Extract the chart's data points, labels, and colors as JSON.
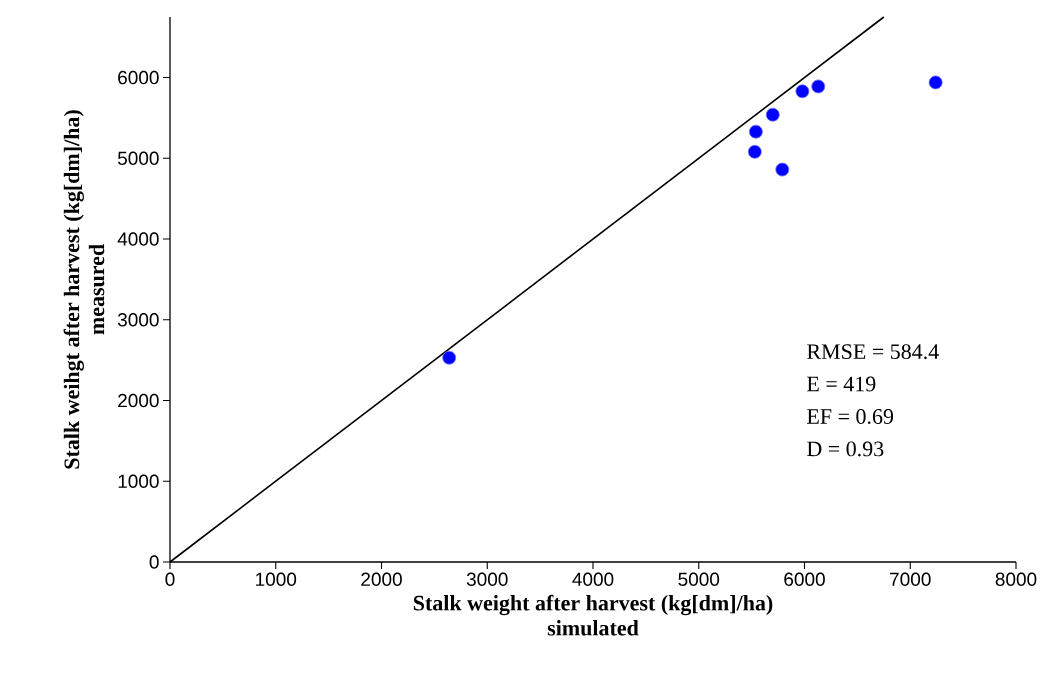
{
  "chart_data": {
    "type": "scatter",
    "xlabel": "Stalk weight after harvest (kg[dm]/ha)\nsimulated",
    "ylabel": "Stalk weihgt after harvest (kg[dm]/ha)\nmeasured",
    "xlim": [
      0,
      8000
    ],
    "ylim": [
      0,
      6750
    ],
    "xticks": [
      0,
      1000,
      2000,
      3000,
      4000,
      5000,
      6000,
      7000,
      8000
    ],
    "yticks": [
      0,
      1000,
      2000,
      3000,
      4000,
      5000,
      6000
    ],
    "grid": false,
    "series": [
      {
        "type": "line",
        "marker": "none",
        "color": "#000000",
        "x": [
          0,
          6750
        ],
        "values": [
          0,
          6750
        ]
      },
      {
        "marker": "circle",
        "color": "#0000ff",
        "x": [
          2640,
          5540,
          5530,
          5700,
          5790,
          5980,
          6130,
          7240
        ],
        "values": [
          2530,
          5330,
          5080,
          5540,
          4860,
          5830,
          5890,
          5940
        ]
      }
    ],
    "annotations": [
      "RMSE = 584.4",
      "E = 419",
      "EF = 0.69",
      "D = 0.93"
    ]
  }
}
